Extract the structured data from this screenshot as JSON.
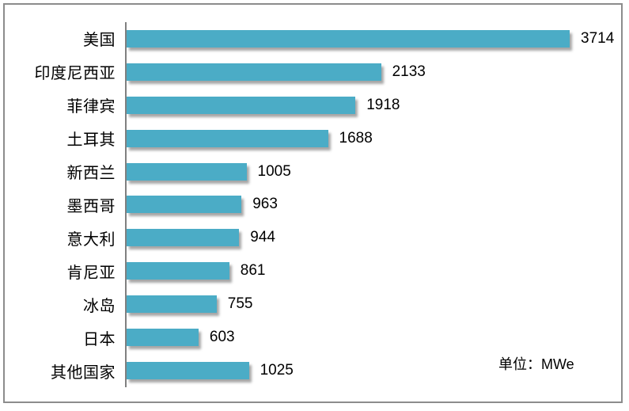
{
  "window": {
    "background_color": "#FFFFFF",
    "border_color": "#8C8C8C"
  },
  "chart_data": {
    "type": "bar",
    "orientation": "horizontal",
    "title": "",
    "xlabel": "",
    "ylabel": "",
    "unit_label": "单位：MWe",
    "categories": [
      "美国",
      "印度尼西亚",
      "菲律宾",
      "土耳其",
      "新西兰",
      "墨西哥",
      "意大利",
      "肯尼亚",
      "冰岛",
      "日本",
      "其他国家"
    ],
    "values": [
      3714,
      2133,
      1918,
      1688,
      1005,
      963,
      944,
      861,
      755,
      603,
      1025
    ],
    "data_labels_visible": true,
    "legend": "none",
    "grid": false,
    "xlim": [
      0,
      4000
    ],
    "bar_color": "#4BACC6",
    "axis_color": "#808080",
    "text_color": "#000000"
  }
}
